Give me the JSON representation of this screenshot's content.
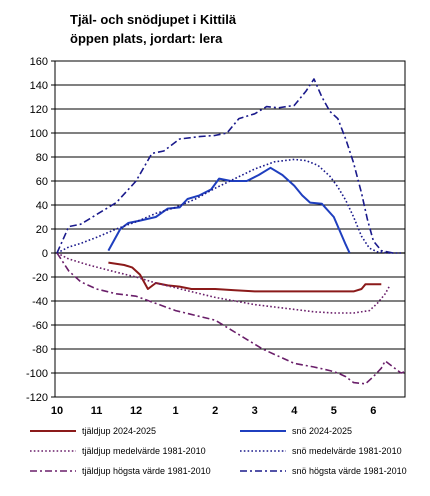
{
  "chart_data": {
    "type": "line",
    "title": "Tjäl- och snödjupet i Kittilä",
    "subtitle": "öppen plats, jordart: lera",
    "xlabel": "",
    "ylabel": "",
    "ylim": [
      -120,
      160
    ],
    "yticks": [
      160,
      140,
      120,
      100,
      80,
      60,
      40,
      20,
      0,
      -20,
      -40,
      -60,
      -80,
      -100,
      -120
    ],
    "x_unit": "month (1 Oct = 0)",
    "xticks": [
      {
        "label": "10",
        "x": 0
      },
      {
        "label": "11",
        "x": 1
      },
      {
        "label": "12",
        "x": 2
      },
      {
        "label": "1",
        "x": 3
      },
      {
        "label": "2",
        "x": 4
      },
      {
        "label": "3",
        "x": 5
      },
      {
        "label": "4",
        "x": 6
      },
      {
        "label": "5",
        "x": 7
      },
      {
        "label": "6",
        "x": 8
      }
    ],
    "xlim": [
      -0.05,
      8.8
    ],
    "grid": true,
    "legend_position": "bottom",
    "series": [
      {
        "name": "tjäldjup 2024-2025",
        "color": "#8b1a1a",
        "style": "solid",
        "width": 2,
        "points": [
          [
            1.3,
            -8
          ],
          [
            1.7,
            -10
          ],
          [
            1.9,
            -12
          ],
          [
            2.1,
            -18
          ],
          [
            2.3,
            -30
          ],
          [
            2.5,
            -25
          ],
          [
            2.8,
            -27
          ],
          [
            3.1,
            -28
          ],
          [
            3.4,
            -30
          ],
          [
            4,
            -30
          ],
          [
            4.5,
            -31
          ],
          [
            5,
            -32
          ],
          [
            5.5,
            -32
          ],
          [
            6,
            -32
          ],
          [
            6.5,
            -32
          ],
          [
            7.1,
            -32
          ],
          [
            7.5,
            -32
          ],
          [
            7.7,
            -30
          ],
          [
            7.8,
            -26
          ],
          [
            8.2,
            -26
          ]
        ]
      },
      {
        "name": "snö 2024-2025",
        "color": "#1f3fbf",
        "style": "solid",
        "width": 2,
        "points": [
          [
            1.3,
            2
          ],
          [
            1.6,
            20
          ],
          [
            1.8,
            25
          ],
          [
            2.1,
            27
          ],
          [
            2.5,
            30
          ],
          [
            2.8,
            37
          ],
          [
            3.1,
            38
          ],
          [
            3.3,
            45
          ],
          [
            3.6,
            48
          ],
          [
            3.9,
            53
          ],
          [
            4.1,
            62
          ],
          [
            4.4,
            60
          ],
          [
            4.8,
            60
          ],
          [
            5.1,
            65
          ],
          [
            5.4,
            71
          ],
          [
            5.7,
            65
          ],
          [
            6,
            56
          ],
          [
            6.2,
            48
          ],
          [
            6.4,
            42
          ],
          [
            6.7,
            41
          ],
          [
            7,
            30
          ],
          [
            7.3,
            7
          ],
          [
            7.4,
            0
          ]
        ]
      },
      {
        "name": "tjäldjup medelvärde 1981-2010",
        "color": "#6a1f6a",
        "style": "dotted",
        "width": 1.6,
        "points": [
          [
            0,
            0
          ],
          [
            0.3,
            -5
          ],
          [
            0.8,
            -10
          ],
          [
            1.5,
            -16
          ],
          [
            2,
            -20
          ],
          [
            2.5,
            -25
          ],
          [
            3,
            -29
          ],
          [
            3.5,
            -33
          ],
          [
            4,
            -37
          ],
          [
            4.5,
            -40
          ],
          [
            5,
            -43
          ],
          [
            5.5,
            -45
          ],
          [
            6,
            -47
          ],
          [
            6.5,
            -49
          ],
          [
            7,
            -50
          ],
          [
            7.5,
            -50
          ],
          [
            7.9,
            -48
          ],
          [
            8.1,
            -42
          ],
          [
            8.3,
            -34
          ],
          [
            8.4,
            -28
          ]
        ]
      },
      {
        "name": "snö medelvärde 1981-2010",
        "color": "#1a1a8c",
        "style": "dotted",
        "width": 1.6,
        "points": [
          [
            0,
            0
          ],
          [
            0.3,
            5
          ],
          [
            0.6,
            8
          ],
          [
            1,
            13
          ],
          [
            1.5,
            20
          ],
          [
            2,
            26
          ],
          [
            2.5,
            33
          ],
          [
            3,
            38
          ],
          [
            3.5,
            45
          ],
          [
            4,
            54
          ],
          [
            4.5,
            62
          ],
          [
            5,
            70
          ],
          [
            5.5,
            76
          ],
          [
            6,
            78
          ],
          [
            6.3,
            77
          ],
          [
            6.6,
            73
          ],
          [
            6.9,
            64
          ],
          [
            7.1,
            55
          ],
          [
            7.3,
            44
          ],
          [
            7.5,
            30
          ],
          [
            7.7,
            14
          ],
          [
            7.9,
            4
          ],
          [
            8.1,
            1
          ],
          [
            8.4,
            0
          ],
          [
            8.7,
            0
          ]
        ]
      },
      {
        "name": "tjäldjup högsta värde 1981-2010",
        "color": "#6a1f6a",
        "style": "dashdot",
        "width": 1.6,
        "points": [
          [
            0,
            0
          ],
          [
            0.3,
            -15
          ],
          [
            0.6,
            -24
          ],
          [
            1,
            -30
          ],
          [
            1.5,
            -34
          ],
          [
            2,
            -36
          ],
          [
            2.5,
            -42
          ],
          [
            3,
            -48
          ],
          [
            3.5,
            -52
          ],
          [
            4,
            -56
          ],
          [
            4.4,
            -64
          ],
          [
            4.8,
            -72
          ],
          [
            5.2,
            -80
          ],
          [
            5.6,
            -86
          ],
          [
            6,
            -92
          ],
          [
            6.5,
            -95
          ],
          [
            6.9,
            -98
          ],
          [
            7.1,
            -100
          ],
          [
            7.3,
            -103
          ],
          [
            7.5,
            -108
          ],
          [
            7.8,
            -109
          ],
          [
            8,
            -103
          ],
          [
            8.2,
            -96
          ],
          [
            8.3,
            -90
          ],
          [
            8.5,
            -95
          ],
          [
            8.7,
            -100
          ],
          [
            8.8,
            -99
          ]
        ]
      },
      {
        "name": "snö högsta värde 1981-2010",
        "color": "#1a1a8c",
        "style": "dashdot",
        "width": 1.6,
        "points": [
          [
            0,
            0
          ],
          [
            0.3,
            22
          ],
          [
            0.6,
            24
          ],
          [
            1,
            32
          ],
          [
            1.5,
            42
          ],
          [
            2,
            60
          ],
          [
            2.4,
            83
          ],
          [
            2.7,
            85
          ],
          [
            3.1,
            95
          ],
          [
            3.6,
            97
          ],
          [
            4,
            98
          ],
          [
            4.3,
            100
          ],
          [
            4.6,
            112
          ],
          [
            5,
            116
          ],
          [
            5.3,
            122
          ],
          [
            5.6,
            121
          ],
          [
            6,
            123
          ],
          [
            6.3,
            135
          ],
          [
            6.5,
            145
          ],
          [
            6.7,
            130
          ],
          [
            6.9,
            118
          ],
          [
            7.1,
            112
          ],
          [
            7.3,
            95
          ],
          [
            7.5,
            75
          ],
          [
            7.7,
            50
          ],
          [
            7.85,
            28
          ],
          [
            8,
            10
          ],
          [
            8.2,
            2
          ],
          [
            8.5,
            0
          ]
        ]
      }
    ]
  }
}
